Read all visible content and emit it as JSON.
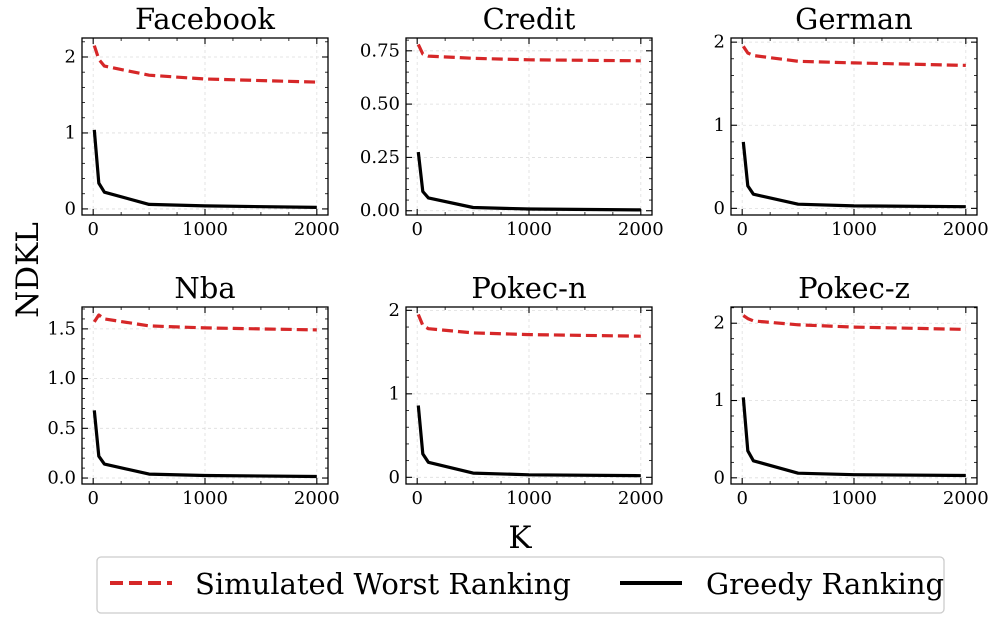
{
  "figure": {
    "ylabel": "NDKL",
    "xlabel": "K"
  },
  "legend": {
    "items": [
      {
        "label": "Simulated Worst Ranking",
        "color": "#d62728",
        "style": "dashed"
      },
      {
        "label": "Greedy Ranking",
        "color": "#000000",
        "style": "solid"
      }
    ]
  },
  "chart_data": [
    {
      "type": "line",
      "title": "Facebook",
      "xlim": [
        -100,
        2100
      ],
      "ylim": [
        -0.08,
        2.25
      ],
      "xticks": [
        0,
        1000,
        2000
      ],
      "yticks": [
        0,
        1,
        2
      ],
      "ytick_labels": [
        "0",
        "1",
        "2"
      ],
      "x": [
        10,
        50,
        100,
        500,
        1000,
        2000
      ],
      "series": [
        {
          "name": "Simulated Worst Ranking",
          "values": [
            2.15,
            1.97,
            1.88,
            1.76,
            1.71,
            1.67
          ]
        },
        {
          "name": "Greedy Ranking",
          "values": [
            1.04,
            0.34,
            0.22,
            0.06,
            0.04,
            0.02
          ]
        }
      ]
    },
    {
      "type": "line",
      "title": "Credit",
      "xlim": [
        -100,
        2100
      ],
      "ylim": [
        -0.02,
        0.81
      ],
      "xticks": [
        0,
        1000,
        2000
      ],
      "yticks": [
        0,
        0.25,
        0.5,
        0.75
      ],
      "ytick_labels": [
        "0.00",
        "0.25",
        "0.50",
        "0.75"
      ],
      "x": [
        10,
        50,
        100,
        500,
        1000,
        2000
      ],
      "series": [
        {
          "name": "Simulated Worst Ranking",
          "values": [
            0.78,
            0.735,
            0.725,
            0.715,
            0.708,
            0.703
          ]
        },
        {
          "name": "Greedy Ranking",
          "values": [
            0.275,
            0.09,
            0.06,
            0.015,
            0.008,
            0.004
          ]
        }
      ]
    },
    {
      "type": "line",
      "title": "German",
      "xlim": [
        -100,
        2100
      ],
      "ylim": [
        -0.08,
        2.05
      ],
      "xticks": [
        0,
        1000,
        2000
      ],
      "yticks": [
        0,
        1,
        2
      ],
      "ytick_labels": [
        "0",
        "1",
        "2"
      ],
      "x": [
        10,
        50,
        100,
        500,
        1000,
        2000
      ],
      "series": [
        {
          "name": "Simulated Worst Ranking",
          "values": [
            1.95,
            1.87,
            1.84,
            1.77,
            1.75,
            1.72
          ]
        },
        {
          "name": "Greedy Ranking",
          "values": [
            0.8,
            0.27,
            0.17,
            0.05,
            0.03,
            0.02
          ]
        }
      ]
    },
    {
      "type": "line",
      "title": "Nba",
      "xlim": [
        -100,
        2100
      ],
      "ylim": [
        -0.06,
        1.72
      ],
      "xticks": [
        0,
        1000,
        2000
      ],
      "yticks": [
        0,
        0.5,
        1,
        1.5
      ],
      "ytick_labels": [
        "0.0",
        "0.5",
        "1.0",
        "1.5"
      ],
      "x": [
        10,
        50,
        100,
        500,
        1000,
        2000
      ],
      "series": [
        {
          "name": "Simulated Worst Ranking",
          "values": [
            1.57,
            1.64,
            1.6,
            1.53,
            1.51,
            1.49
          ]
        },
        {
          "name": "Greedy Ranking",
          "values": [
            0.68,
            0.22,
            0.14,
            0.04,
            0.025,
            0.015
          ]
        }
      ]
    },
    {
      "type": "line",
      "title": "Pokec-n",
      "xlim": [
        -100,
        2100
      ],
      "ylim": [
        -0.08,
        2.04
      ],
      "xticks": [
        0,
        1000,
        2000
      ],
      "yticks": [
        0,
        1,
        2
      ],
      "ytick_labels": [
        "0",
        "1",
        "2"
      ],
      "x": [
        10,
        50,
        100,
        500,
        1000,
        2000
      ],
      "series": [
        {
          "name": "Simulated Worst Ranking",
          "values": [
            1.95,
            1.82,
            1.78,
            1.73,
            1.71,
            1.69
          ]
        },
        {
          "name": "Greedy Ranking",
          "values": [
            0.86,
            0.28,
            0.18,
            0.05,
            0.03,
            0.02
          ]
        }
      ]
    },
    {
      "type": "line",
      "title": "Pokec-z",
      "xlim": [
        -100,
        2100
      ],
      "ylim": [
        -0.08,
        2.21
      ],
      "xticks": [
        0,
        1000,
        2000
      ],
      "yticks": [
        0,
        1,
        2
      ],
      "ytick_labels": [
        "0",
        "1",
        "2"
      ],
      "x": [
        10,
        50,
        100,
        500,
        1000,
        2000
      ],
      "series": [
        {
          "name": "Simulated Worst Ranking",
          "values": [
            2.1,
            2.06,
            2.03,
            1.98,
            1.95,
            1.92
          ]
        },
        {
          "name": "Greedy Ranking",
          "values": [
            1.04,
            0.35,
            0.22,
            0.06,
            0.04,
            0.03
          ]
        }
      ]
    }
  ]
}
